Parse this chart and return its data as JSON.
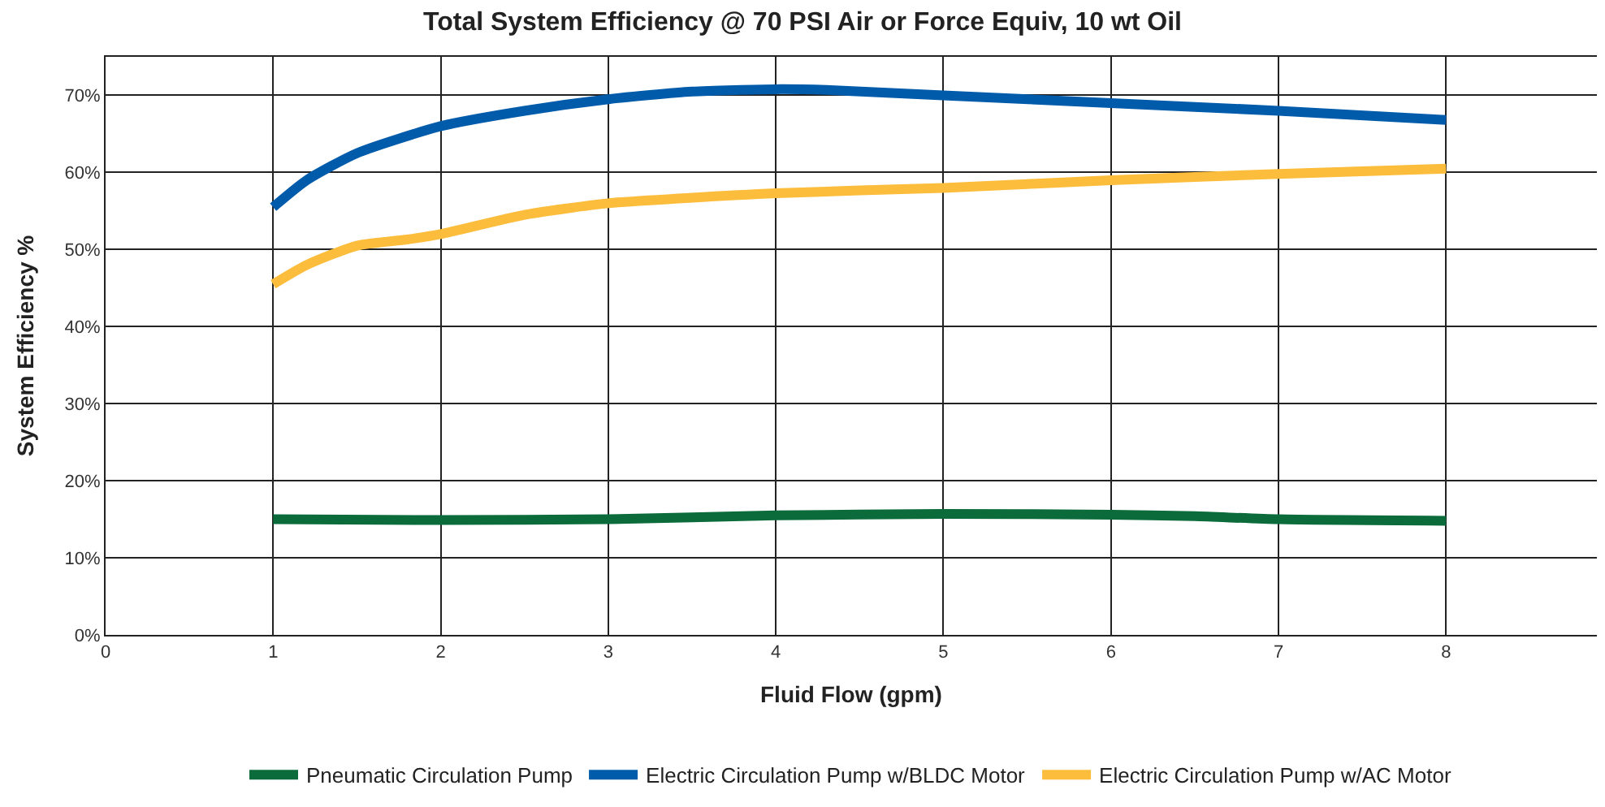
{
  "chart_data": {
    "type": "line",
    "title": "Total System Efficiency @ 70 PSI Air or Force Equiv, 10 wt Oil",
    "xlabel": "Fluid Flow (gpm)",
    "ylabel": "System Efficiency %",
    "xlim": [
      0,
      8.9
    ],
    "xticks": [
      0,
      1,
      2,
      3,
      4,
      5,
      6,
      7,
      8
    ],
    "ylim": [
      0,
      75
    ],
    "yticks": [
      {
        "value": 0,
        "label": "0%"
      },
      {
        "value": 10,
        "label": "10%"
      },
      {
        "value": 20,
        "label": "20%"
      },
      {
        "value": 30,
        "label": "30%"
      },
      {
        "value": 40,
        "label": "40%"
      },
      {
        "value": 50,
        "label": "50%"
      },
      {
        "value": 60,
        "label": "60%"
      },
      {
        "value": 70,
        "label": "70%"
      }
    ],
    "grid": true,
    "legend": "bottom",
    "marker": "none",
    "line_style": "solid",
    "series": [
      {
        "name": "Pneumatic Circulation Pump",
        "color": "#0b6b3a",
        "x": [
          1,
          2,
          3,
          4,
          5,
          6,
          6.5,
          7,
          8
        ],
        "values": [
          15,
          14.9,
          15,
          15.5,
          15.7,
          15.6,
          15.4,
          15,
          14.8
        ]
      },
      {
        "name": "Electric Circulation Pump w/BLDC Motor",
        "color": "#005bab",
        "x": [
          1,
          1.2,
          1.5,
          2,
          2.5,
          3,
          3.5,
          4,
          4.3,
          5,
          6,
          7,
          8
        ],
        "values": [
          55.5,
          59,
          62.5,
          66,
          68,
          69.5,
          70.5,
          70.8,
          70.7,
          70,
          69,
          68,
          66.8
        ]
      },
      {
        "name": "Electric Circulation Pump w/AC Motor",
        "color": "#fbbd3b",
        "x": [
          1,
          1.2,
          1.5,
          1.8,
          2,
          2.5,
          3,
          4,
          5,
          6,
          7,
          8
        ],
        "values": [
          45.5,
          48,
          50.5,
          51.3,
          52,
          54.5,
          56,
          57.3,
          58,
          59,
          59.8,
          60.5
        ]
      }
    ]
  }
}
